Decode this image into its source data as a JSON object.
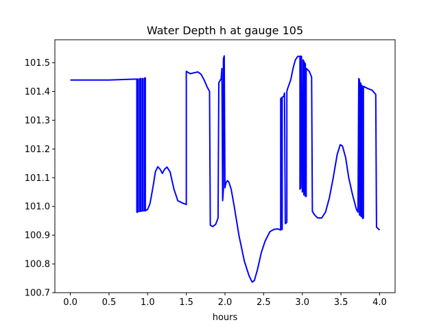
{
  "chart_data": {
    "type": "line",
    "title": "Water Depth h at gauge 105",
    "xlabel": "hours",
    "ylabel": "",
    "xlim": [
      -0.2,
      4.2
    ],
    "ylim": [
      100.7,
      101.58
    ],
    "x_ticks": [
      0.0,
      0.5,
      1.0,
      1.5,
      2.0,
      2.5,
      3.0,
      3.5,
      4.0
    ],
    "x_tick_labels": [
      "0.0",
      "0.5",
      "1.0",
      "1.5",
      "2.0",
      "2.5",
      "3.0",
      "3.5",
      "4.0"
    ],
    "y_ticks": [
      100.7,
      100.8,
      100.9,
      101.0,
      101.1,
      101.2,
      101.3,
      101.4,
      101.5
    ],
    "y_tick_labels": [
      "100.7",
      "100.8",
      "100.9",
      "101.0",
      "101.1",
      "101.2",
      "101.3",
      "101.4",
      "101.5"
    ],
    "grid": false,
    "series": [
      {
        "color": "#0000ff",
        "points": [
          [
            0.0,
            101.44
          ],
          [
            0.5,
            101.44
          ],
          [
            0.85,
            101.443
          ],
          [
            0.86,
            101.443
          ],
          [
            0.86,
            100.98
          ],
          [
            0.87,
            100.98
          ],
          [
            0.87,
            101.443
          ],
          [
            0.88,
            101.443
          ],
          [
            0.88,
            100.983
          ],
          [
            0.9,
            100.983
          ],
          [
            0.9,
            101.445
          ],
          [
            0.91,
            101.445
          ],
          [
            0.91,
            100.983
          ],
          [
            0.93,
            100.985
          ],
          [
            0.93,
            101.445
          ],
          [
            0.94,
            101.445
          ],
          [
            0.94,
            100.985
          ],
          [
            0.96,
            100.985
          ],
          [
            0.96,
            101.447
          ],
          [
            0.97,
            101.447
          ],
          [
            0.97,
            100.985
          ],
          [
            1.0,
            100.99
          ],
          [
            1.03,
            101.01
          ],
          [
            1.07,
            101.07
          ],
          [
            1.1,
            101.12
          ],
          [
            1.13,
            101.138
          ],
          [
            1.16,
            101.13
          ],
          [
            1.19,
            101.115
          ],
          [
            1.22,
            101.13
          ],
          [
            1.25,
            101.137
          ],
          [
            1.29,
            101.12
          ],
          [
            1.34,
            101.06
          ],
          [
            1.39,
            101.02
          ],
          [
            1.45,
            101.012
          ],
          [
            1.5,
            101.007
          ],
          [
            1.5,
            101.47
          ],
          [
            1.55,
            101.462
          ],
          [
            1.6,
            101.465
          ],
          [
            1.65,
            101.468
          ],
          [
            1.69,
            101.46
          ],
          [
            1.73,
            101.44
          ],
          [
            1.77,
            101.415
          ],
          [
            1.8,
            101.4
          ],
          [
            1.81,
            100.935
          ],
          [
            1.84,
            100.93
          ],
          [
            1.88,
            100.938
          ],
          [
            1.91,
            100.96
          ],
          [
            1.92,
            101.43
          ],
          [
            1.95,
            101.445
          ],
          [
            1.96,
            101.48
          ],
          [
            1.97,
            101.02
          ],
          [
            1.98,
            101.06
          ],
          [
            1.98,
            101.513
          ],
          [
            1.99,
            101.524
          ],
          [
            2.0,
            101.065
          ],
          [
            2.01,
            101.08
          ],
          [
            2.03,
            101.09
          ],
          [
            2.05,
            101.085
          ],
          [
            2.08,
            101.06
          ],
          [
            2.12,
            101.0
          ],
          [
            2.18,
            100.9
          ],
          [
            2.25,
            100.81
          ],
          [
            2.31,
            100.76
          ],
          [
            2.35,
            100.737
          ],
          [
            2.38,
            100.742
          ],
          [
            2.42,
            100.78
          ],
          [
            2.47,
            100.84
          ],
          [
            2.52,
            100.88
          ],
          [
            2.58,
            100.912
          ],
          [
            2.63,
            100.92
          ],
          [
            2.68,
            100.922
          ],
          [
            2.72,
            100.918
          ],
          [
            2.72,
            101.375
          ],
          [
            2.73,
            101.378
          ],
          [
            2.73,
            100.92
          ],
          [
            2.74,
            100.92
          ],
          [
            2.74,
            101.38
          ],
          [
            2.76,
            101.383
          ],
          [
            2.77,
            101.395
          ],
          [
            2.78,
            100.94
          ],
          [
            2.8,
            100.945
          ],
          [
            2.8,
            101.4
          ],
          [
            2.81,
            101.41
          ],
          [
            2.85,
            101.44
          ],
          [
            2.88,
            101.48
          ],
          [
            2.91,
            101.51
          ],
          [
            2.94,
            101.522
          ],
          [
            2.97,
            101.522
          ],
          [
            2.97,
            101.06
          ],
          [
            2.98,
            101.065
          ],
          [
            2.98,
            101.523
          ],
          [
            2.99,
            101.522
          ],
          [
            3.0,
            101.05
          ],
          [
            3.01,
            101.06
          ],
          [
            3.01,
            101.51
          ],
          [
            3.02,
            101.505
          ],
          [
            3.02,
            101.04
          ],
          [
            3.03,
            101.04
          ],
          [
            3.03,
            101.5
          ],
          [
            3.04,
            101.495
          ],
          [
            3.04,
            101.035
          ],
          [
            3.05,
            101.035
          ],
          [
            3.05,
            101.48
          ],
          [
            3.09,
            101.47
          ],
          [
            3.12,
            101.45
          ],
          [
            3.13,
            100.983
          ],
          [
            3.16,
            100.97
          ],
          [
            3.2,
            100.96
          ],
          [
            3.25,
            100.96
          ],
          [
            3.3,
            100.98
          ],
          [
            3.35,
            101.03
          ],
          [
            3.4,
            101.1
          ],
          [
            3.45,
            101.18
          ],
          [
            3.49,
            101.215
          ],
          [
            3.52,
            101.21
          ],
          [
            3.56,
            101.17
          ],
          [
            3.6,
            101.1
          ],
          [
            3.65,
            101.04
          ],
          [
            3.7,
            100.99
          ],
          [
            3.72,
            100.98
          ],
          [
            3.73,
            101.445
          ],
          [
            3.74,
            101.44
          ],
          [
            3.74,
            100.97
          ],
          [
            3.75,
            100.97
          ],
          [
            3.75,
            101.43
          ],
          [
            3.76,
            101.425
          ],
          [
            3.76,
            100.965
          ],
          [
            3.77,
            100.965
          ],
          [
            3.77,
            101.42
          ],
          [
            3.78,
            101.418
          ],
          [
            3.78,
            100.958
          ],
          [
            3.79,
            100.96
          ],
          [
            3.79,
            101.418
          ],
          [
            3.85,
            101.41
          ],
          [
            3.9,
            101.405
          ],
          [
            3.95,
            101.39
          ],
          [
            3.96,
            100.928
          ],
          [
            4.0,
            100.918
          ]
        ]
      }
    ]
  }
}
